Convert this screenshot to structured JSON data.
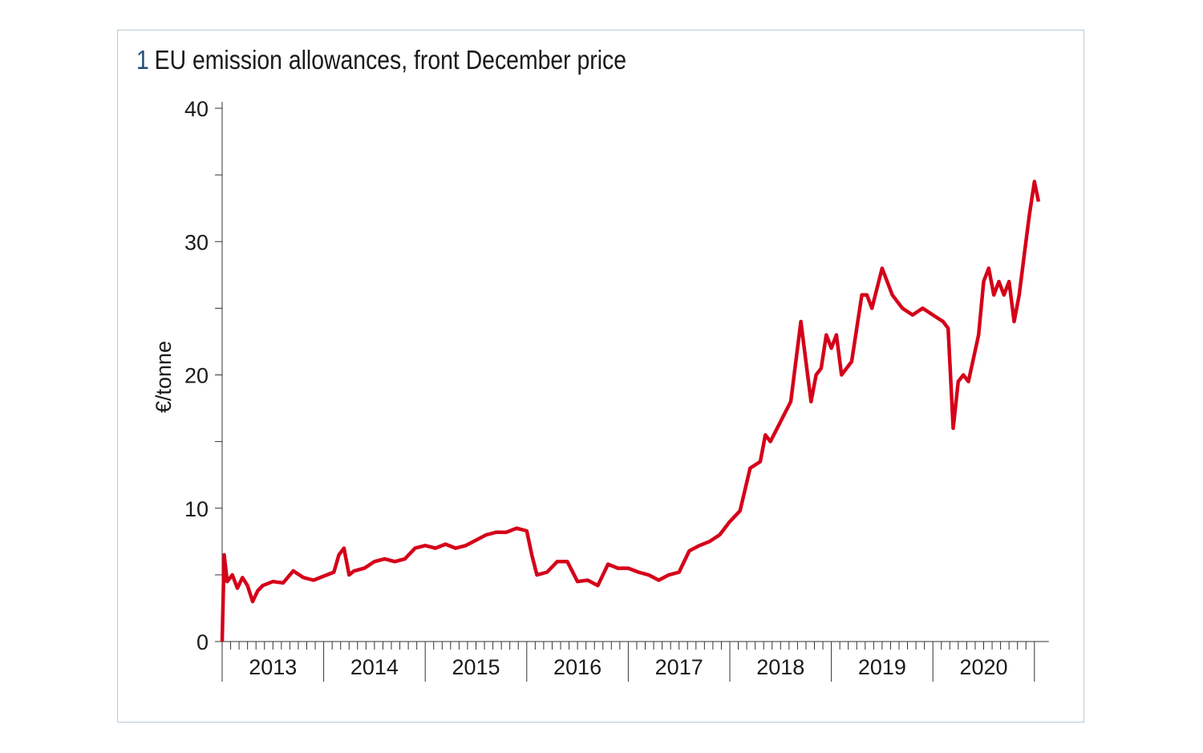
{
  "chart_data": {
    "type": "line",
    "number": "1",
    "title": "EU emission allowances, front December price",
    "ylabel": "€/tonne",
    "xlabel": "",
    "ylim": [
      0,
      40
    ],
    "yticks": [
      "0",
      "10",
      "20",
      "30",
      "40"
    ],
    "xlim": [
      2013.0,
      2021.0
    ],
    "xtick_labels": [
      "2013",
      "2014",
      "2015",
      "2016",
      "2017",
      "2018",
      "2019",
      "2020"
    ],
    "grid": false,
    "color": "#d50019",
    "series": [
      {
        "name": "EUA front December price",
        "x": [
          2013.0,
          2013.02,
          2013.05,
          2013.1,
          2013.15,
          2013.2,
          2013.25,
          2013.3,
          2013.35,
          2013.4,
          2013.5,
          2013.6,
          2013.7,
          2013.8,
          2013.9,
          2014.0,
          2014.1,
          2014.15,
          2014.2,
          2014.25,
          2014.3,
          2014.4,
          2014.5,
          2014.6,
          2014.7,
          2014.8,
          2014.9,
          2015.0,
          2015.1,
          2015.2,
          2015.3,
          2015.4,
          2015.5,
          2015.6,
          2015.7,
          2015.8,
          2015.9,
          2016.0,
          2016.05,
          2016.1,
          2016.2,
          2016.3,
          2016.4,
          2016.5,
          2016.6,
          2016.7,
          2016.8,
          2016.9,
          2017.0,
          2017.1,
          2017.2,
          2017.3,
          2017.4,
          2017.5,
          2017.6,
          2017.7,
          2017.8,
          2017.9,
          2018.0,
          2018.1,
          2018.2,
          2018.3,
          2018.35,
          2018.4,
          2018.5,
          2018.6,
          2018.65,
          2018.7,
          2018.75,
          2018.8,
          2018.85,
          2018.9,
          2018.95,
          2019.0,
          2019.05,
          2019.1,
          2019.2,
          2019.3,
          2019.35,
          2019.4,
          2019.5,
          2019.55,
          2019.6,
          2019.7,
          2019.8,
          2019.9,
          2020.0,
          2020.1,
          2020.15,
          2020.2,
          2020.25,
          2020.3,
          2020.35,
          2020.45,
          2020.5,
          2020.55,
          2020.6,
          2020.65,
          2020.7,
          2020.75,
          2020.8,
          2020.85,
          2020.9,
          2020.95,
          2021.0,
          2021.04
        ],
        "values": [
          0,
          6.5,
          4.5,
          5,
          4,
          4.8,
          4.2,
          3,
          3.8,
          4.2,
          4.5,
          4.4,
          5.3,
          4.8,
          4.6,
          4.9,
          5.2,
          6.5,
          7,
          5,
          5.3,
          5.5,
          6,
          6.2,
          6,
          6.2,
          7,
          7.2,
          7,
          7.3,
          7,
          7.2,
          7.6,
          8,
          8.2,
          8.2,
          8.5,
          8.3,
          6.5,
          5,
          5.2,
          6,
          6,
          4.5,
          4.6,
          4.2,
          5.8,
          5.5,
          5.5,
          5.2,
          5,
          4.6,
          5,
          5.2,
          6.8,
          7.2,
          7.5,
          8,
          9,
          9.8,
          13,
          13.5,
          15.5,
          15,
          16.5,
          18,
          21,
          24,
          21,
          18,
          20,
          20.5,
          23,
          22,
          23,
          20,
          21,
          26,
          26,
          25,
          28,
          27,
          26,
          25,
          24.5,
          25,
          24.5,
          24,
          23.5,
          16,
          19.5,
          20,
          19.5,
          23,
          27,
          28,
          26,
          27,
          26,
          27,
          24,
          26,
          29,
          32,
          34.5,
          33
        ]
      }
    ]
  }
}
